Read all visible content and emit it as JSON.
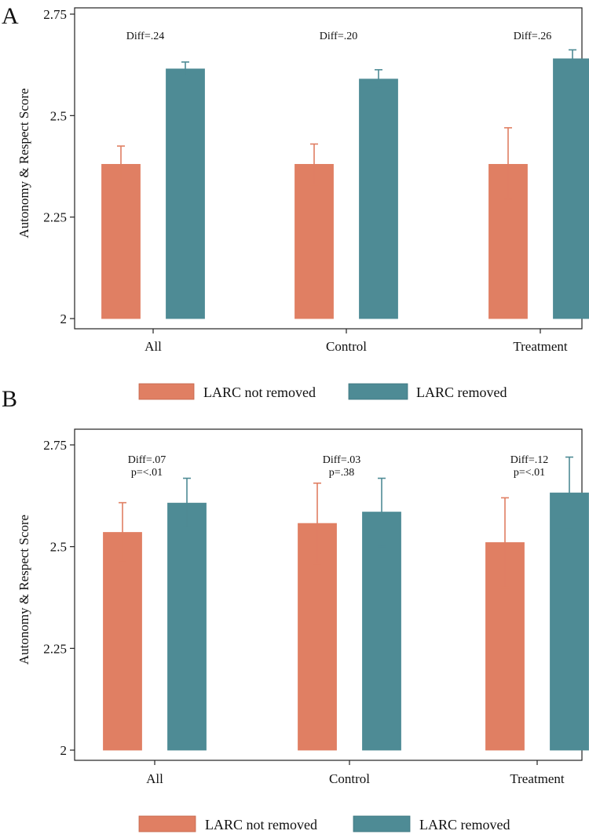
{
  "chart_data": [
    {
      "type": "bar",
      "panel": "A",
      "ylabel": "Autonomy & Respect Score",
      "ylim": [
        2,
        2.75
      ],
      "yticks": [
        2,
        2.25,
        2.5,
        2.75
      ],
      "ytick_labels": [
        "2",
        "2.25",
        "2.5",
        "2.75"
      ],
      "categories": [
        "All",
        "Control",
        "Treatment"
      ],
      "series": [
        {
          "name": "LARC not removed",
          "color": "#e07f63",
          "values": [
            2.38,
            2.38,
            2.38
          ],
          "ci_low": [
            2.335,
            2.33,
            2.295
          ],
          "ci_high": [
            2.425,
            2.43,
            2.47
          ]
        },
        {
          "name": "LARC removed",
          "color": "#4e8b95",
          "values": [
            2.615,
            2.59,
            2.64
          ],
          "ci_low": [
            2.598,
            2.567,
            2.618
          ],
          "ci_high": [
            2.632,
            2.613,
            2.662
          ]
        }
      ],
      "annotations": [
        [
          "Diff=.24"
        ],
        [
          "Diff=.20"
        ],
        [
          "Diff=.26"
        ]
      ],
      "legend": "bottom",
      "grid": false
    },
    {
      "type": "bar",
      "panel": "B",
      "ylabel": "Autonomy & Respect Score",
      "ylim": [
        2,
        2.75
      ],
      "yticks": [
        2,
        2.25,
        2.5,
        2.75
      ],
      "ytick_labels": [
        "2",
        "2.25",
        "2.5",
        "2.75"
      ],
      "categories": [
        "All",
        "Control",
        "Treatment"
      ],
      "series": [
        {
          "name": "LARC not removed",
          "color": "#e07f63",
          "values": [
            2.535,
            2.557,
            2.51
          ],
          "ci_low": [
            2.462,
            2.458,
            2.4
          ],
          "ci_high": [
            2.608,
            2.656,
            2.62
          ]
        },
        {
          "name": "LARC removed",
          "color": "#4e8b95",
          "values": [
            2.607,
            2.585,
            2.632
          ],
          "ci_low": [
            2.548,
            2.5,
            2.546
          ],
          "ci_high": [
            2.668,
            2.668,
            2.72
          ]
        }
      ],
      "annotations": [
        [
          "Diff=.07",
          "p=<.01"
        ],
        [
          "Diff=.03",
          "p=.38"
        ],
        [
          "Diff=.12",
          "p=<.01"
        ]
      ],
      "legend": "bottom",
      "grid": false
    }
  ]
}
